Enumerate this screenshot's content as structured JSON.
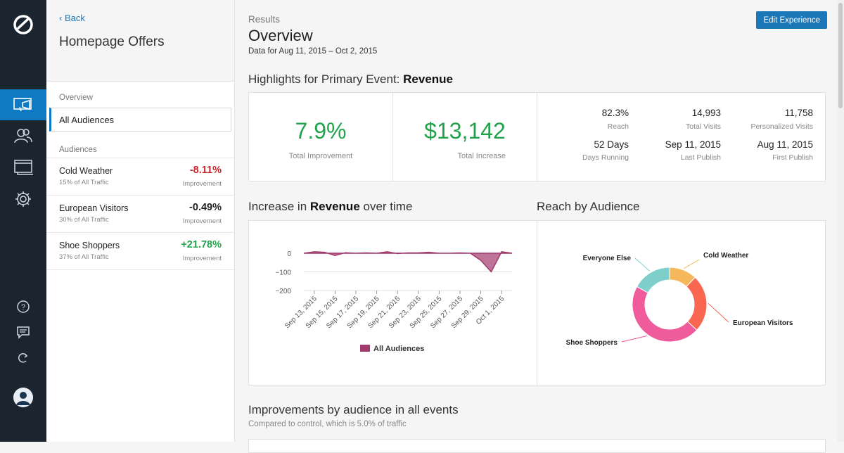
{
  "nav": {
    "items": [
      "campaigns-icon",
      "audiences-icon",
      "layouts-icon",
      "settings-icon"
    ],
    "utilities": [
      "help-icon",
      "feedback-icon",
      "refresh-icon"
    ]
  },
  "sidebar": {
    "back_label": "‹ Back",
    "title": "Homepage Offers",
    "overview_label": "Overview",
    "all_audiences": "All Audiences",
    "audiences_label": "Audiences",
    "audiences": [
      {
        "name": "Cold Weather",
        "traffic": "15% of All Traffic",
        "value": "-8.11%",
        "value_label": "Improvement",
        "color": "#c8262c"
      },
      {
        "name": "European Visitors",
        "traffic": "30% of All Traffic",
        "value": "-0.49%",
        "value_label": "Improvement",
        "color": "#222222"
      },
      {
        "name": "Shoe Shoppers",
        "traffic": "37% of All Traffic",
        "value": "+21.78%",
        "value_label": "Improvement",
        "color": "#22a24b"
      }
    ]
  },
  "main": {
    "breadcrumb": "Results",
    "title": "Overview",
    "date_range": "Data for Aug 11, 2015 – Oct 2, 2015",
    "edit_button": "Edit Experience",
    "highlights_prefix": "Highlights for Primary Event:",
    "highlights_event": "Revenue",
    "total_improvement": "7.9%",
    "total_improvement_label": "Total Improvement",
    "total_increase": "$13,142",
    "total_increase_label": "Total Increase",
    "stats": [
      {
        "value": "82.3%",
        "label": "Reach"
      },
      {
        "value": "14,993",
        "label": "Total Visits"
      },
      {
        "value": "11,758",
        "label": "Personalized Visits"
      },
      {
        "value": "52 Days",
        "label": "Days Running"
      },
      {
        "value": "Sep 11, 2015",
        "label": "Last Publish"
      },
      {
        "value": "Aug 11, 2015",
        "label": "First Publish"
      }
    ],
    "increase_prefix": "Increase in",
    "increase_event": "Revenue",
    "increase_suffix": "over time",
    "reach_title": "Reach by Audience",
    "improvements_title": "Improvements by audience in all events",
    "improvements_subtitle": "Compared to control, which is 5.0% of traffic"
  },
  "chart_data": [
    {
      "type": "area",
      "title": "",
      "series": [
        {
          "name": "All Audiences",
          "color": "#a3396e",
          "values": [
            0,
            8,
            5,
            -12,
            3,
            0,
            2,
            0,
            8,
            -2,
            2,
            2,
            5,
            0,
            0,
            2,
            0,
            -38,
            -100,
            8,
            0
          ]
        }
      ],
      "x": [
        "Sep 12, 2015",
        "Sep 13, 2015",
        "Sep 14, 2015",
        "Sep 15, 2015",
        "Sep 16, 2015",
        "Sep 17, 2015",
        "Sep 18, 2015",
        "Sep 19, 2015",
        "Sep 20, 2015",
        "Sep 21, 2015",
        "Sep 22, 2015",
        "Sep 23, 2015",
        "Sep 24, 2015",
        "Sep 25, 2015",
        "Sep 26, 2015",
        "Sep 27, 2015",
        "Sep 28, 2015",
        "Sep 29, 2015",
        "Sep 30, 2015",
        "Oct 1, 2015",
        "Oct 2, 2015"
      ],
      "x_ticks": [
        "Sep 13, 2015",
        "Sep 15, 2015",
        "Sep 17, 2015",
        "Sep 19, 2015",
        "Sep 21, 2015",
        "Sep 23, 2015",
        "Sep 25, 2015",
        "Sep 27, 2015",
        "Sep 29, 2015",
        "Oct 1, 2015"
      ],
      "y_ticks": [
        "0",
        "−100",
        "−200"
      ],
      "ylim": [
        -200,
        10
      ],
      "legend": "bottom"
    },
    {
      "type": "pie",
      "variant": "donut",
      "slices": [
        {
          "label": "Cold Weather",
          "value": 12,
          "color": "#f5b85a"
        },
        {
          "label": "European Visitors",
          "value": 25,
          "color": "#fa6650"
        },
        {
          "label": "Shoe Shoppers",
          "value": 46,
          "color": "#ef5b9b"
        },
        {
          "label": "Everyone Else",
          "value": 17,
          "color": "#7ecfcb"
        }
      ]
    }
  ]
}
